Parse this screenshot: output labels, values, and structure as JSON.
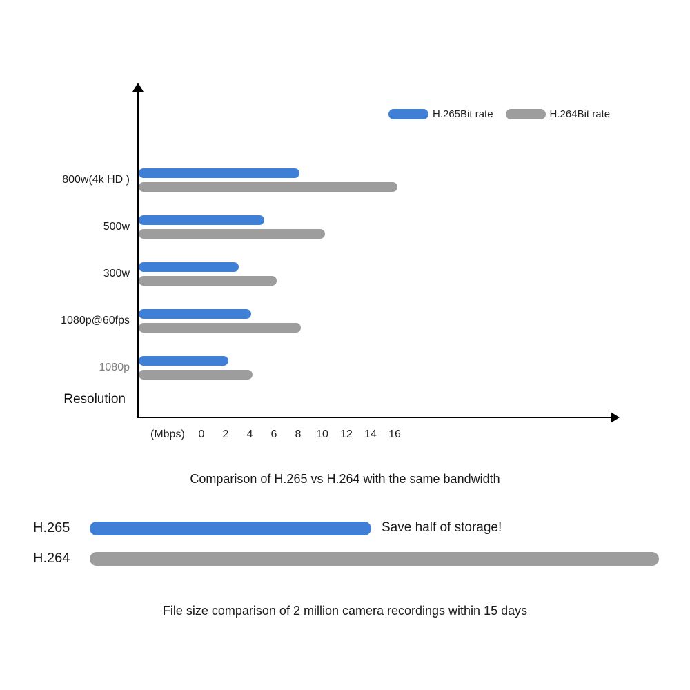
{
  "chart_data": {
    "type": "bar",
    "orientation": "horizontal",
    "title": "Comparison of H.265 vs H.264 with the same bandwidth",
    "xlabel": "(Mbps)",
    "ylabel": "Resolution",
    "categories": [
      "800w(4k HD )",
      "500w",
      "300w",
      "1080p@60fps",
      "1080p"
    ],
    "category_colors": [
      "#1a1a1a",
      "#1a1a1a",
      "#1a1a1a",
      "#1a1a1a",
      "#7d7d7d"
    ],
    "series": [
      {
        "name": "H.265Bit rate",
        "color": "#3f7fd6",
        "values": [
          8.1,
          5.2,
          3.1,
          4.1,
          2.2
        ]
      },
      {
        "name": "H.264Bit rate",
        "color": "#9d9d9d",
        "values": [
          16.2,
          10.2,
          6.2,
          8.2,
          4.2
        ]
      }
    ],
    "x_ticks": [
      0,
      2,
      4,
      6,
      8,
      10,
      12,
      14,
      16
    ],
    "xlim": [
      0,
      17
    ],
    "grid": false,
    "legend_position": "top-right"
  },
  "storage_comparison": {
    "items": [
      {
        "label": "H.265",
        "color": "#3f7fd6",
        "relative_length": 0.494,
        "annotation": "Save half of storage!"
      },
      {
        "label": "H.264",
        "color": "#9d9d9d",
        "relative_length": 1.0,
        "annotation": ""
      }
    ],
    "caption": "File size comparison of 2 million camera recordings within 15 days"
  }
}
